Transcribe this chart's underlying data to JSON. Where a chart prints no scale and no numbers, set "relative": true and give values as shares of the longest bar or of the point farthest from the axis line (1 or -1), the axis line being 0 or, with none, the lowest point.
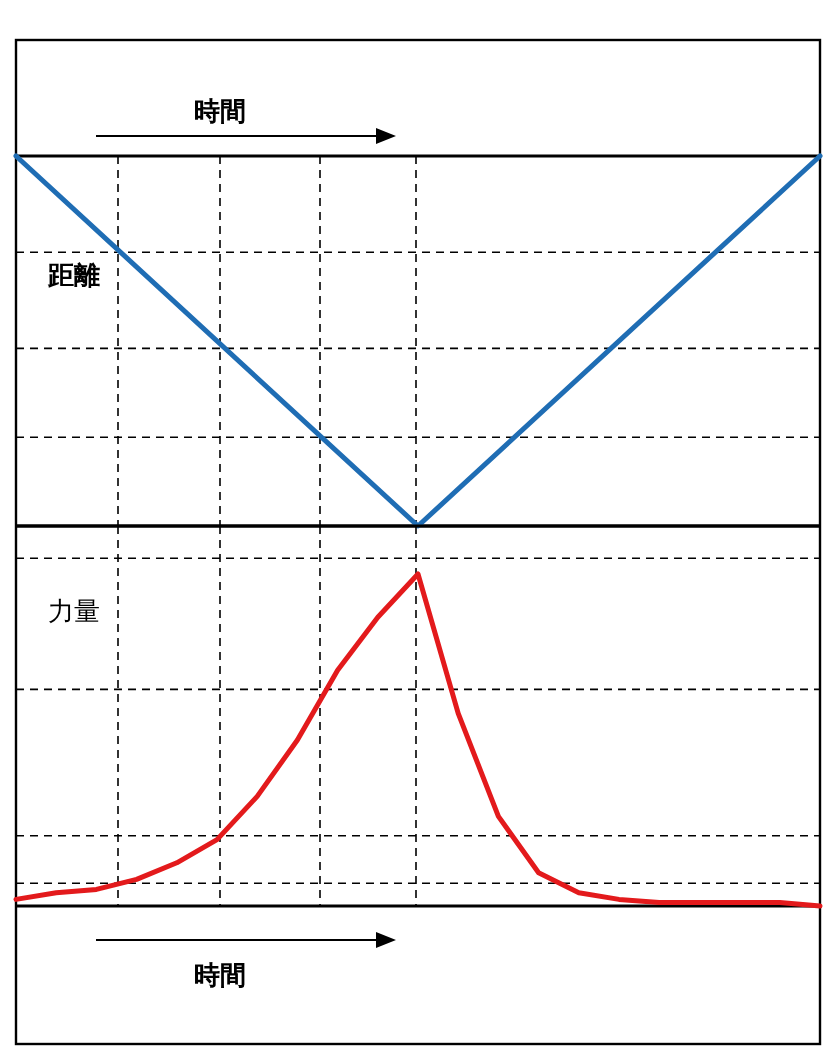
{
  "chart_data": [
    {
      "type": "line",
      "relative": true,
      "xlabel": "時間",
      "ylabel": "距離",
      "categories": [
        null,
        null,
        null
      ],
      "grid": true,
      "series": [
        {
          "color": "#1f6db4",
          "values": [
            1,
            0,
            1
          ]
        }
      ]
    },
    {
      "type": "line",
      "relative": true,
      "xlabel": "時間",
      "ylabel": "力量",
      "categories": [
        null,
        null,
        null,
        null,
        null,
        null,
        null,
        null,
        null,
        null,
        null,
        null,
        null,
        null,
        null,
        null,
        null,
        null,
        null,
        null,
        null
      ],
      "grid": true,
      "series": [
        {
          "color": "#e31a1c",
          "values": [
            0.02,
            0.04,
            0.05,
            0.08,
            0.13,
            0.2,
            0.33,
            0.5,
            0.71,
            0.87,
            1,
            0.58,
            0.27,
            0.1,
            0.04,
            0.02,
            0.01,
            0.01,
            0.01,
            0.01,
            0
          ]
        }
      ]
    }
  ]
}
